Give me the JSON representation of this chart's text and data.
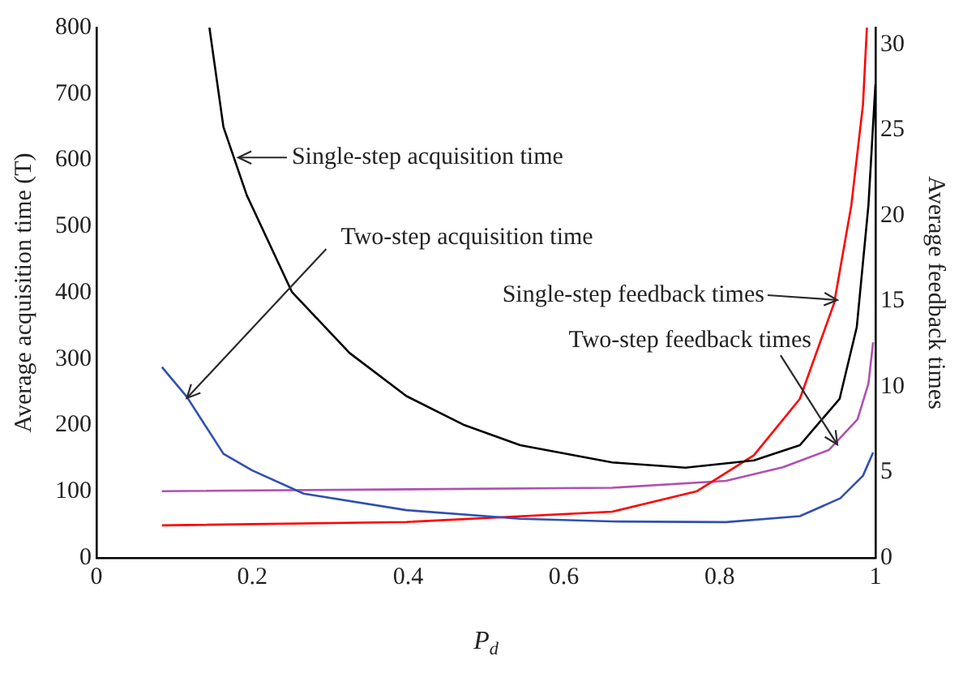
{
  "chart_data": {
    "type": "line",
    "xlabel": "P$_{d}$",
    "ylabel": "Average acquisition time (T)",
    "y2label": "Average feedback times",
    "xlim": [
      0,
      1
    ],
    "xticks": [
      0,
      0.2,
      0.4,
      0.6,
      0.8,
      1
    ],
    "ylim": [
      0,
      800
    ],
    "yticks": [
      0,
      100,
      200,
      300,
      400,
      500,
      600,
      700,
      800
    ],
    "y2lim": [
      0,
      31
    ],
    "y2ticks": [
      0,
      5,
      10,
      15,
      20,
      25,
      30
    ],
    "grid": false,
    "legend": false,
    "marker": "none",
    "line_style": "solid",
    "series": [
      {
        "color": "#000000",
        "axis": "y",
        "x": [
          0.145,
          0.163,
          0.193,
          0.251,
          0.325,
          0.398,
          0.471,
          0.544,
          0.662,
          0.735,
          0.756,
          0.844,
          0.903,
          0.954,
          0.976,
          0.991,
          1.0
        ],
        "values": [
          800,
          650,
          547,
          401,
          309,
          244,
          201,
          170,
          144,
          138,
          136,
          147,
          170,
          240,
          348,
          532,
          715
        ]
      },
      {
        "color": "#3050b0",
        "axis": "y",
        "x": [
          0.084,
          0.116,
          0.163,
          0.2,
          0.266,
          0.398,
          0.544,
          0.662,
          0.808,
          0.903,
          0.955,
          0.984,
          0.997
        ],
        "values": [
          288,
          243,
          157,
          132,
          97,
          72,
          59,
          55,
          54,
          63,
          90,
          124,
          159
        ]
      },
      {
        "color": "#ff0000",
        "axis": "y2",
        "x": [
          0.084,
          0.398,
          0.662,
          0.771,
          0.844,
          0.903,
          0.947,
          0.969,
          0.984,
          0.989
        ],
        "values": [
          1.9,
          2.1,
          2.7,
          3.9,
          6.0,
          9.3,
          14.9,
          20.6,
          26.5,
          31.0
        ]
      },
      {
        "color": "#b050b0",
        "axis": "y2",
        "x": [
          0.084,
          0.662,
          0.808,
          0.881,
          0.94,
          0.977,
          0.991,
          0.997
        ],
        "values": [
          3.9,
          4.1,
          4.5,
          5.3,
          6.3,
          8.1,
          10.2,
          12.6
        ]
      }
    ],
    "annotations": [
      {
        "text": "Single-step acquisition time",
        "x": 0.182,
        "y": 604
      },
      {
        "text": "Two-step acquisition time",
        "x": 0.116,
        "y": 241
      },
      {
        "text": "Single-step feedback times",
        "x": 0.951,
        "y": 389
      },
      {
        "text": "Two-step feedback times",
        "x": 0.951,
        "y": 171
      }
    ]
  }
}
